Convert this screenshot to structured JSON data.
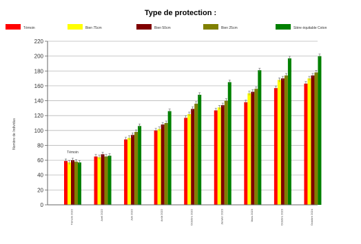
{
  "chart_data": {
    "type": "bar",
    "title": "Type de protection :",
    "ylabel": "Nombre de Individus",
    "ylim": [
      0,
      220
    ],
    "yticks": [
      0,
      20,
      40,
      60,
      80,
      100,
      120,
      140,
      160,
      180,
      200,
      220
    ],
    "grid": true,
    "legend_position": "top",
    "categories": [
      "Témoin 2022",
      "Avril 2022",
      "Juin 2022",
      "Août 2022",
      "Octobre 2022",
      "Janvier 2023",
      "Mars 2023",
      "Octobre 2023",
      "Octobre 2024"
    ],
    "series": [
      {
        "name": "Témoin",
        "color": "#ff0000",
        "values": [
          59,
          65,
          88,
          100,
          117,
          127,
          138,
          157,
          163
        ]
      },
      {
        "name": "Bien 75cm",
        "color": "#ffff00",
        "values": [
          57,
          64,
          90,
          102,
          122,
          131,
          150,
          168,
          170
        ]
      },
      {
        "name": "Bien 50cm",
        "color": "#800000",
        "values": [
          60,
          68,
          94,
          108,
          129,
          134,
          152,
          170,
          174
        ]
      },
      {
        "name": "Bien 25cm",
        "color": "#808000",
        "values": [
          58,
          65,
          98,
          110,
          136,
          140,
          156,
          174,
          178
        ]
      },
      {
        "name": "Stère équitable Coton",
        "color": "#008000",
        "values": [
          57,
          66,
          106,
          126,
          148,
          165,
          181,
          197,
          200
        ]
      }
    ],
    "annotations": [
      {
        "category": "Témoin 2022",
        "text": "Témoin"
      }
    ]
  }
}
